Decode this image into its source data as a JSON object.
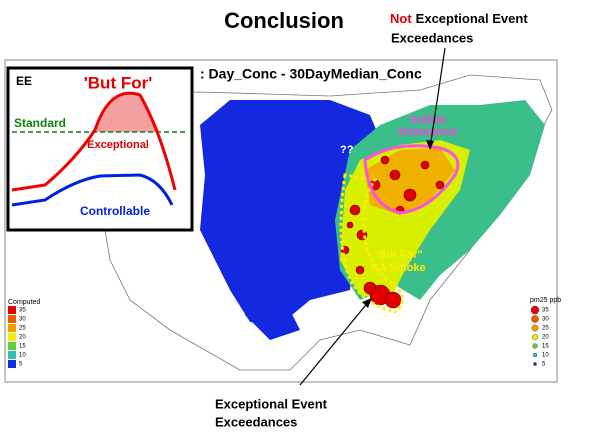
{
  "title": "Conclusion",
  "top_note": {
    "emphasis": "Not",
    "rest": "Exceptional Event",
    "line2": "Exceedances"
  },
  "map_caption": ": Day_Conc - 30DayMedian_Conc",
  "inset": {
    "tag": "EE",
    "but_for": "'But For'",
    "standard": "Standard",
    "exceptional": "Exceptional",
    "controllable": "Controllable"
  },
  "annotations": {
    "unknown": "??",
    "sulfate": [
      "Sulfate",
      "Dominance"
    ],
    "smoke": [
      "\"But For\"",
      "GA Smoke"
    ]
  },
  "bottom_note": [
    "Exceptional Event",
    "Exceedances"
  ],
  "legend_left": {
    "title": "Computed",
    "items": [
      {
        "label": "35",
        "color": "#e8000a"
      },
      {
        "label": "30",
        "color": "#f05a00"
      },
      {
        "label": "25",
        "color": "#f5a000"
      },
      {
        "label": "20",
        "color": "#f0f000"
      },
      {
        "label": "15",
        "color": "#60d040"
      },
      {
        "label": "10",
        "color": "#30c0c0"
      },
      {
        "label": "5",
        "color": "#1030e0"
      }
    ]
  },
  "legend_right": {
    "title": "pm25 ppb",
    "items": [
      {
        "label": "35",
        "color": "#e8000a"
      },
      {
        "label": "30",
        "color": "#f05a00"
      },
      {
        "label": "25",
        "color": "#f5a000"
      },
      {
        "label": "20",
        "color": "#f0f000"
      },
      {
        "label": "15",
        "color": "#60d040"
      },
      {
        "label": "10",
        "color": "#30c0c0"
      },
      {
        "label": "5",
        "color": "#1030e0"
      }
    ]
  }
}
